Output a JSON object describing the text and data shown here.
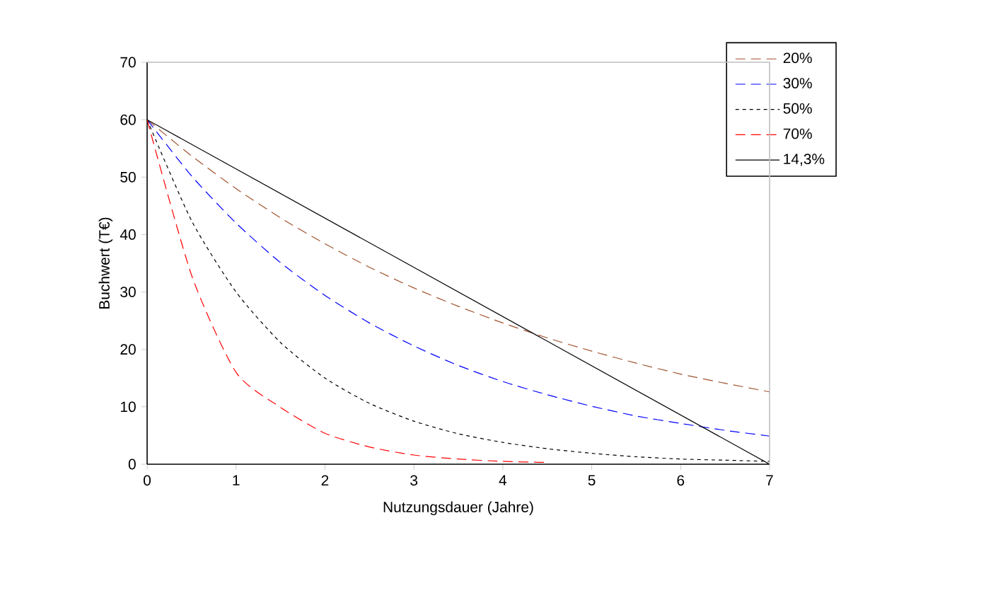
{
  "chart_data": {
    "type": "line",
    "xlabel": "Nutzungsdauer (Jahre)",
    "ylabel": "Buchwert (T€)",
    "xlim": [
      0,
      7
    ],
    "ylim": [
      0,
      70
    ],
    "xticks": [
      0,
      1,
      2,
      3,
      4,
      5,
      6,
      7
    ],
    "yticks": [
      0,
      10,
      20,
      30,
      40,
      50,
      60,
      70
    ],
    "legend": "top right",
    "series": [
      {
        "name": "20%",
        "color": "#a0522d",
        "line_style": "dashed",
        "x": [
          0,
          0.5,
          1,
          1.5,
          2,
          2.5,
          3,
          3.5,
          4,
          4.5,
          5,
          5.5,
          6,
          6.5,
          7
        ],
        "values": [
          60,
          53.7,
          48,
          42.9,
          38.4,
          34.3,
          30.7,
          27.5,
          24.6,
          22,
          19.7,
          17.6,
          15.7,
          14.1,
          12.6
        ]
      },
      {
        "name": "30%",
        "color": "#0000ff",
        "line_style": "dashed",
        "x": [
          0,
          0.5,
          1,
          1.5,
          2,
          2.5,
          3,
          3.5,
          4,
          4.5,
          5,
          5.5,
          6,
          6.5,
          7
        ],
        "values": [
          60,
          50.2,
          42,
          35.1,
          29.4,
          24.6,
          20.6,
          17.2,
          14.4,
          12.1,
          10.1,
          8.4,
          7.1,
          5.9,
          4.9
        ]
      },
      {
        "name": "50%",
        "color": "#000000",
        "line_style": "dotted",
        "x": [
          0,
          0.5,
          1,
          1.5,
          2,
          2.5,
          3,
          3.5,
          4,
          4.5,
          5,
          5.5,
          6,
          6.5,
          7
        ],
        "values": [
          60,
          42.4,
          30,
          21.2,
          15,
          10.6,
          7.5,
          5.3,
          3.8,
          2.7,
          1.9,
          1.3,
          0.9,
          0.7,
          0.5
        ]
      },
      {
        "name": "70%",
        "color": "#ff0000",
        "line_style": "dashed",
        "x": [
          0,
          0.5,
          1,
          1.5,
          2,
          2.5,
          3,
          3.5,
          4,
          4.5
        ],
        "values": [
          60,
          32.9,
          16,
          9.9,
          5.4,
          3,
          1.6,
          0.9,
          0.5,
          0.3
        ]
      },
      {
        "name": "14,3%",
        "color": "#000000",
        "line_style": "solid",
        "x": [
          0,
          7
        ],
        "values": [
          60,
          0
        ]
      }
    ]
  }
}
